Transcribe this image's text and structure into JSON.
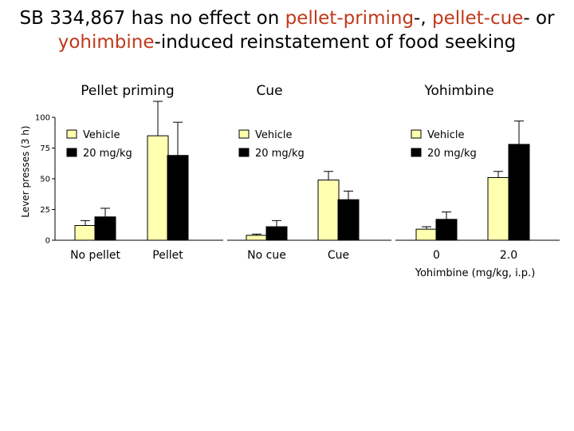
{
  "slide": {
    "title_parts": [
      {
        "text": "SB 334,867 has no effect on ",
        "highlight": false
      },
      {
        "text": "pellet-priming",
        "highlight": true
      },
      {
        "text": "-, ",
        "highlight": false
      },
      {
        "text": "pellet-cue",
        "highlight": true
      },
      {
        "text": "- or ",
        "highlight": false
      },
      {
        "text": "yohimbine",
        "highlight": true
      },
      {
        "text": "-induced reinstatement of food seeking",
        "highlight": false
      }
    ],
    "highlight_color": "#c0391b"
  },
  "chart_data": {
    "type": "bar",
    "ylabel": "Lever presses (3 h)",
    "ylim": [
      0,
      100
    ],
    "yticks": [
      0,
      25,
      50,
      75,
      100
    ],
    "series_colors": [
      "#ffffb0",
      "#000000"
    ],
    "panels": [
      {
        "title": "Pellet priming",
        "categories": [
          "No pellet",
          "Pellet"
        ],
        "legend": [
          "Vehicle",
          "20 mg/kg"
        ],
        "series": [
          {
            "name": "Vehicle",
            "values": [
              12,
              85
            ],
            "errors": [
              4,
              28
            ]
          },
          {
            "name": "20 mg/kg",
            "values": [
              19,
              69
            ],
            "errors": [
              7,
              27
            ]
          }
        ]
      },
      {
        "title": "Cue",
        "categories": [
          "No cue",
          "Cue"
        ],
        "legend": [
          "Vehicle",
          "20 mg/kg"
        ],
        "series": [
          {
            "name": "Vehicle",
            "values": [
              4,
              49
            ],
            "errors": [
              1,
              7
            ]
          },
          {
            "name": "20 mg/kg",
            "values": [
              11,
              33
            ],
            "errors": [
              5,
              7
            ]
          }
        ]
      },
      {
        "title": "Yohimbine",
        "categories": [
          "0",
          "2.0"
        ],
        "xlabel": "Yohimbine (mg/kg, i.p.)",
        "legend": [
          "Vehicle",
          "20 mg/kg"
        ],
        "series": [
          {
            "name": "Vehicle",
            "values": [
              9,
              51
            ],
            "errors": [
              2,
              5
            ]
          },
          {
            "name": "20 mg/kg",
            "values": [
              17,
              78
            ],
            "errors": [
              6,
              19
            ]
          }
        ]
      }
    ]
  }
}
